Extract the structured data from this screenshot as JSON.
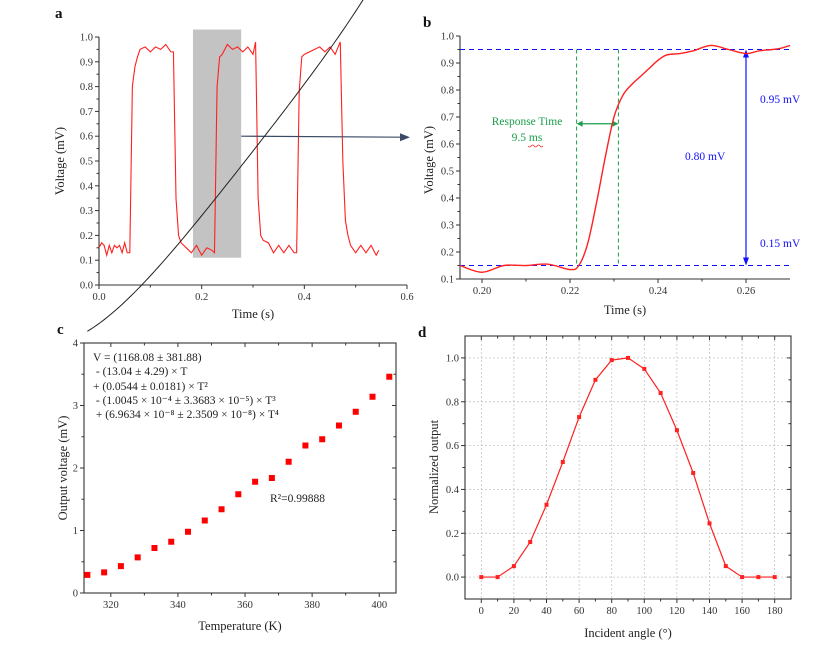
{
  "chart_data": [
    {
      "panel": "a",
      "type": "line",
      "xlabel": "Time (s)",
      "ylabel": "Voltage (mV)",
      "xlim": [
        0.0,
        0.6
      ],
      "ylim": [
        0.0,
        1.0
      ],
      "xticks": [
        "0.0",
        "0.2",
        "0.4",
        "0.6"
      ],
      "yticks": [
        "0.0",
        "0.1",
        "0.2",
        "0.3",
        "0.4",
        "0.5",
        "0.6",
        "0.7",
        "0.8",
        "0.9",
        "1.0"
      ],
      "color": "#ff2020",
      "highlight_region": {
        "x": [
          0.183,
          0.277
        ],
        "y": [
          0.11,
          1.03
        ],
        "color": "#c4c3c4"
      },
      "x": [
        0.0,
        0.005,
        0.01,
        0.015,
        0.02,
        0.025,
        0.03,
        0.035,
        0.04,
        0.045,
        0.05,
        0.055,
        0.06,
        0.065,
        0.07,
        0.075,
        0.08,
        0.09,
        0.1,
        0.11,
        0.12,
        0.13,
        0.14,
        0.145,
        0.15,
        0.155,
        0.16,
        0.17,
        0.18,
        0.19,
        0.2,
        0.21,
        0.22,
        0.225,
        0.23,
        0.235,
        0.24,
        0.25,
        0.26,
        0.27,
        0.28,
        0.29,
        0.3,
        0.305,
        0.31,
        0.315,
        0.32,
        0.33,
        0.34,
        0.35,
        0.36,
        0.37,
        0.38,
        0.385,
        0.39,
        0.395,
        0.4,
        0.41,
        0.42,
        0.43,
        0.44,
        0.45,
        0.46,
        0.47,
        0.475,
        0.48,
        0.485,
        0.49,
        0.5,
        0.51,
        0.52,
        0.53,
        0.54,
        0.545
      ],
      "values": [
        0.15,
        0.17,
        0.16,
        0.12,
        0.16,
        0.13,
        0.16,
        0.15,
        0.16,
        0.13,
        0.17,
        0.13,
        0.13,
        0.8,
        0.88,
        0.92,
        0.95,
        0.96,
        0.94,
        0.96,
        0.95,
        0.97,
        0.94,
        0.94,
        0.35,
        0.2,
        0.17,
        0.15,
        0.13,
        0.16,
        0.12,
        0.15,
        0.14,
        0.13,
        0.8,
        0.92,
        0.93,
        0.97,
        0.95,
        0.96,
        0.94,
        0.96,
        0.93,
        0.98,
        0.35,
        0.2,
        0.18,
        0.17,
        0.13,
        0.16,
        0.13,
        0.16,
        0.13,
        0.13,
        0.78,
        0.92,
        0.93,
        0.94,
        0.95,
        0.96,
        0.94,
        0.96,
        0.93,
        0.98,
        0.5,
        0.26,
        0.2,
        0.16,
        0.13,
        0.16,
        0.13,
        0.16,
        0.12,
        0.14
      ],
      "arrow_to_panel": "b"
    },
    {
      "panel": "b",
      "type": "line",
      "xlabel": "Time (s)",
      "ylabel": "Voltage (mV)",
      "xlim": [
        0.195,
        0.27
      ],
      "ylim": [
        0.1,
        1.0
      ],
      "xticks": [
        "0.20",
        "0.22",
        "0.24",
        "0.26"
      ],
      "yticks": [
        "0.1",
        "0.2",
        "0.3",
        "0.4",
        "0.5",
        "0.6",
        "0.7",
        "0.8",
        "0.9",
        "1.0"
      ],
      "color": "#ff2020",
      "x": [
        0.195,
        0.2,
        0.205,
        0.21,
        0.215,
        0.22,
        0.222,
        0.224,
        0.226,
        0.228,
        0.23,
        0.232,
        0.234,
        0.236,
        0.238,
        0.24,
        0.242,
        0.245,
        0.248,
        0.252,
        0.256,
        0.26,
        0.263,
        0.266,
        0.268,
        0.27
      ],
      "values": [
        0.15,
        0.125,
        0.15,
        0.15,
        0.155,
        0.135,
        0.15,
        0.23,
        0.38,
        0.55,
        0.7,
        0.78,
        0.82,
        0.85,
        0.88,
        0.91,
        0.93,
        0.935,
        0.945,
        0.965,
        0.95,
        0.935,
        0.945,
        0.95,
        0.955,
        0.965
      ],
      "annotations": {
        "upper_level": {
          "value": 0.95,
          "label": "0.95 mV"
        },
        "lower_level": {
          "value": 0.15,
          "label": "0.15 mV"
        },
        "amplitude_label": "0.80 mV",
        "amplitude_arrow_x": 0.26,
        "response_start": 0.2215,
        "response_end": 0.231,
        "response_arrow_y": 0.675,
        "response_label_line1": "Response Time",
        "response_label_line2": "9.5 ms",
        "level_color": "#1010ff",
        "response_color": "#1a9e4a"
      }
    },
    {
      "panel": "c",
      "type": "scatter",
      "xlabel": "Temperature (K)",
      "ylabel": "Output voltage (mV)",
      "xlim": [
        312,
        405
      ],
      "ylim": [
        0,
        4
      ],
      "xticks": [
        "320",
        "340",
        "360",
        "380",
        "400"
      ],
      "yticks": [
        "0",
        "1",
        "2",
        "3",
        "4"
      ],
      "marker_color": "#ff0000",
      "fit_color": "#222222",
      "x": [
        313,
        318,
        323,
        328,
        333,
        338,
        343,
        348,
        353,
        358,
        363,
        368,
        373,
        378,
        383,
        388,
        393,
        398,
        403
      ],
      "values": [
        0.29,
        0.33,
        0.43,
        0.57,
        0.72,
        0.82,
        0.98,
        1.16,
        1.34,
        1.58,
        1.78,
        1.84,
        2.1,
        2.36,
        2.46,
        2.68,
        2.9,
        3.14,
        3.46
      ],
      "fit_equation": [
        "V = (1168.08 ± 381.88)",
        " - (13.04 ± 4.29) × T",
        "+ (0.0544 ± 0.0181) × T²",
        " - (1.0045 × 10⁻⁴ ± 3.3683 × 10⁻⁵) × T³",
        " + (6.9634 × 10⁻⁸ ± 2.3509 × 10⁻⁸) × T⁴"
      ],
      "r_squared_label": "R²=0.99888"
    },
    {
      "panel": "d",
      "type": "line",
      "xlabel": "Incident angle (°)",
      "ylabel": "Normalized output",
      "xlim": [
        -10,
        190
      ],
      "ylim": [
        -0.1,
        1.1
      ],
      "grid": true,
      "xticks": [
        "0",
        "20",
        "40",
        "60",
        "80",
        "100",
        "120",
        "140",
        "160",
        "180"
      ],
      "yticks": [
        "0.0",
        "0.2",
        "0.4",
        "0.6",
        "0.8",
        "1.0"
      ],
      "color": "#ff2020",
      "x": [
        0,
        10,
        20,
        30,
        40,
        50,
        60,
        70,
        80,
        90,
        100,
        110,
        120,
        130,
        140,
        150,
        160,
        170,
        180
      ],
      "values": [
        0,
        0,
        0.05,
        0.16,
        0.33,
        0.525,
        0.73,
        0.9,
        0.99,
        1.0,
        0.95,
        0.84,
        0.67,
        0.475,
        0.245,
        0.05,
        0,
        0,
        0
      ]
    }
  ],
  "panel_labels": [
    "a",
    "b",
    "c",
    "d"
  ]
}
